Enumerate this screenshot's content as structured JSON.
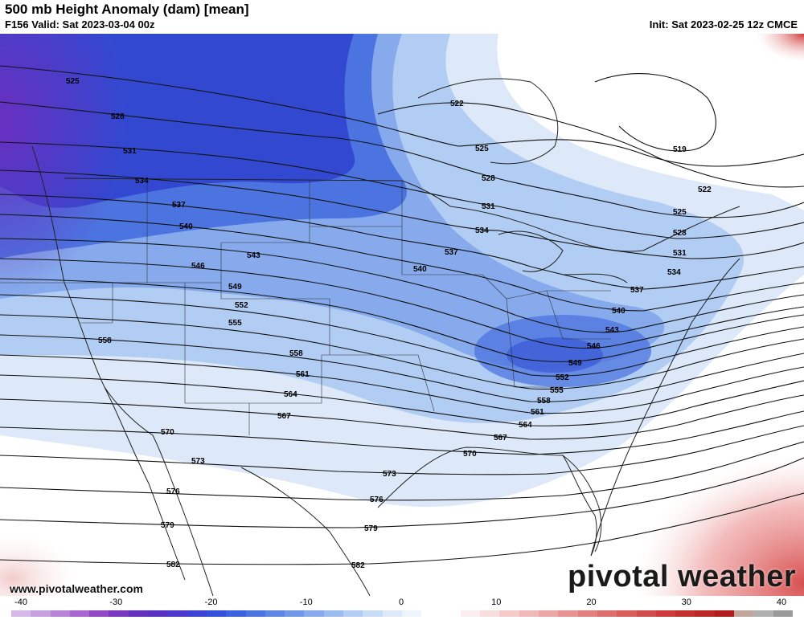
{
  "header": {
    "title": "500 mb Height Anomaly (dam) [mean]",
    "valid": "F156 Valid: Sat 2023-03-04 00z",
    "init": "Init: Sat 2023-02-25 12z CMCE"
  },
  "footer": {
    "url": "www.pivotalweather.com",
    "logo": "pivotal weather"
  },
  "colorbar": {
    "tick_labels": [
      "-40",
      "-30",
      "-20",
      "-10",
      "0",
      "10",
      "20",
      "30",
      "40"
    ],
    "colors": [
      "#d7b8e8",
      "#c8a0e0",
      "#b884d8",
      "#a866d0",
      "#9448c6",
      "#7a36c0",
      "#6630be",
      "#5a2fc4",
      "#4c36cc",
      "#3d42d6",
      "#3351d8",
      "#3a62dc",
      "#4a74e0",
      "#5c86e4",
      "#7098e8",
      "#86aaec",
      "#9cbcf0",
      "#b2cdf3",
      "#c8dcf6",
      "#dde9f8",
      "#eef4fb",
      "#ffffff",
      "#ffffff",
      "#fbeeee",
      "#f8dddd",
      "#f4caca",
      "#f0b8b8",
      "#eca6a6",
      "#e79393",
      "#e28080",
      "#dd6e6e",
      "#d85c5c",
      "#d24c4c",
      "#cc3c3c",
      "#c43030",
      "#bb2626",
      "#b21c1c",
      "#c2a69c",
      "#b0b0b0",
      "#9a9a9a"
    ]
  },
  "contours": [
    {
      "label": "525"
    },
    {
      "label": "528"
    },
    {
      "label": "531"
    },
    {
      "label": "534"
    },
    {
      "label": "537"
    },
    {
      "label": "540"
    },
    {
      "label": "543"
    },
    {
      "label": "546"
    },
    {
      "label": "549"
    },
    {
      "label": "552"
    },
    {
      "label": "555"
    },
    {
      "label": "558"
    },
    {
      "label": "561"
    },
    {
      "label": "564"
    },
    {
      "label": "567"
    },
    {
      "label": "570"
    },
    {
      "label": "573"
    },
    {
      "label": "576"
    },
    {
      "label": "579"
    },
    {
      "label": "582"
    },
    {
      "label": "522"
    },
    {
      "label": "519"
    }
  ]
}
